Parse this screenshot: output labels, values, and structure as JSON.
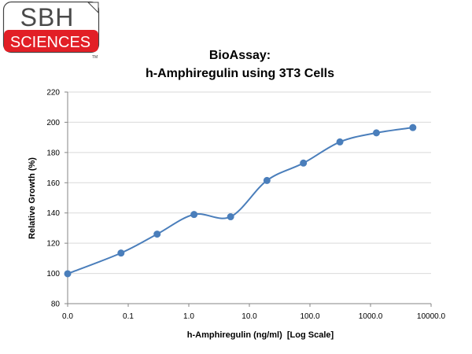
{
  "logo": {
    "line1": "SBH",
    "line2": "SCIENCES",
    "tm": "TM",
    "brand_red": "#e21f26"
  },
  "chart_data": {
    "type": "line",
    "title": [
      "BioAssay:",
      "h-Amphiregulin using 3T3 Cells"
    ],
    "xlabel": "h-Amphiregulin (ng/ml)  [Log Scale]",
    "ylabel": "Relative Growth (%)",
    "x_scale": "log",
    "x_range": [
      0.01,
      10000
    ],
    "xticks": [
      {
        "value": 0.01,
        "label": "0.0"
      },
      {
        "value": 0.1,
        "label": "0.1"
      },
      {
        "value": 1,
        "label": "1.0"
      },
      {
        "value": 10,
        "label": "10.0"
      },
      {
        "value": 100,
        "label": "100.0"
      },
      {
        "value": 1000,
        "label": "1000.0"
      },
      {
        "value": 10000,
        "label": "10000.0"
      }
    ],
    "ylim": [
      80,
      220
    ],
    "yticks": [
      80,
      100,
      120,
      140,
      160,
      180,
      200,
      220
    ],
    "grid": "horizontal",
    "line_color": "#4a7ebb",
    "marker_color": "#4a7ebb",
    "smooth": true,
    "series": [
      {
        "x": [
          0.01,
          0.076,
          0.3,
          1.22,
          4.9,
          19.5,
          78,
          312,
          1250,
          5000
        ],
        "y": [
          99.8,
          113.5,
          126,
          139,
          137.5,
          161.5,
          173,
          187,
          193,
          196.5
        ]
      }
    ]
  }
}
